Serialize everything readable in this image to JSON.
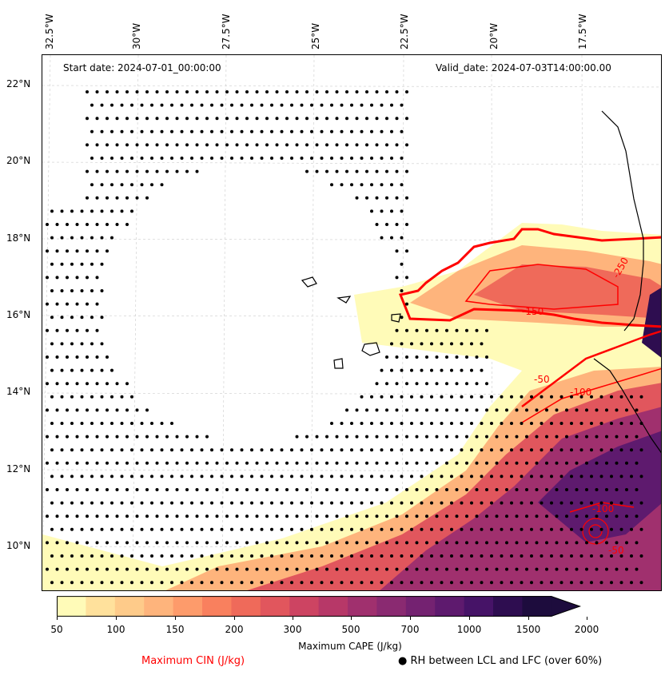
{
  "map": {
    "start_date": "Start date: 2024-07-01_00:00:00",
    "valid_date": "Valid_date: 2024-07-03T14:00:00.00",
    "lon_labels": [
      "32.5°W",
      "30°W",
      "27.5°W",
      "25°W",
      "22.5°W",
      "20°W",
      "17.5°W"
    ],
    "lat_labels": [
      "22°N",
      "20°N",
      "18°N",
      "16°N",
      "14°N",
      "12°N",
      "10°N"
    ],
    "cin_contour_labels": [
      "-250",
      "-150",
      "-50",
      "-100",
      "-100",
      "-50"
    ]
  },
  "colorbar": {
    "label": "Maximum CAPE (J/kg)",
    "ticks": [
      "50",
      "100",
      "150",
      "200",
      "300",
      "500",
      "700",
      "1000",
      "1500",
      "2000"
    ],
    "colors": [
      "#fffbb8",
      "#ffe19c",
      "#fecb8a",
      "#feb47c",
      "#fd9b6b",
      "#f9805e",
      "#ef6a5a",
      "#e1565d",
      "#cd4462",
      "#b73868",
      "#a0306e",
      "#8a2a71",
      "#742271",
      "#5e1a6e",
      "#461367",
      "#2e0d50",
      "#1d0c3d"
    ]
  },
  "legend": {
    "cin": "Maximum CIN (J/kg)",
    "rh": "● RH between LCL and LFC (over 60%)",
    "cin_color": "#ff0000"
  }
}
